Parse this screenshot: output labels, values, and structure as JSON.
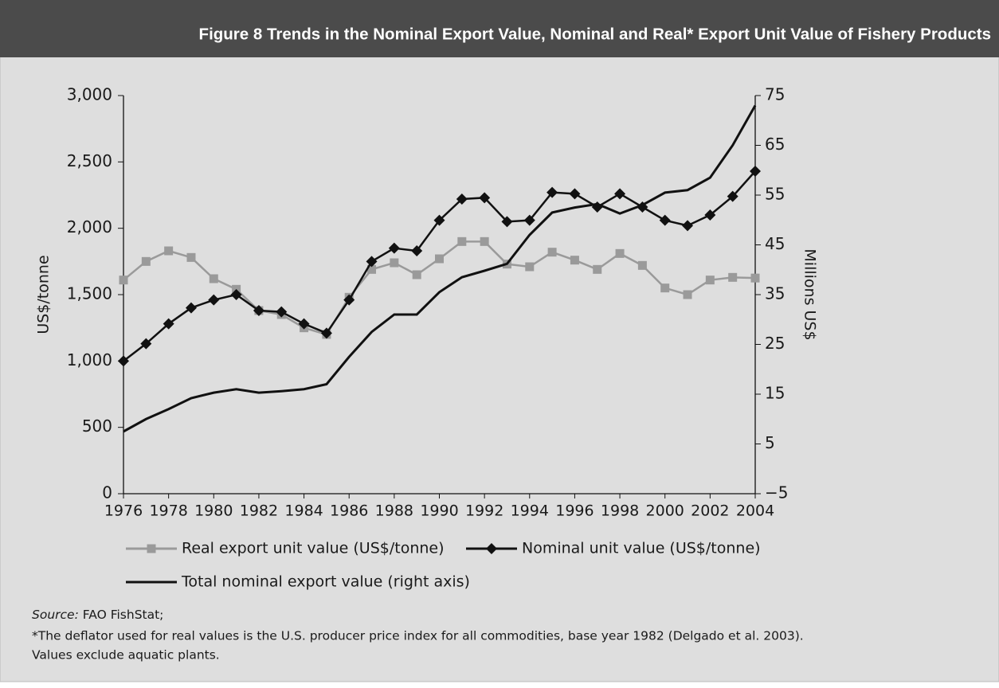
{
  "chart_data": {
    "type": "line",
    "title": "Figure 8  Trends in the Nominal Export Value, Nominal and Real* Export Unit Value of Fishery Products",
    "ylabel": "US$/tonne",
    "y2label": "Millions US$",
    "xlim": [
      1976,
      2004
    ],
    "xticks": [
      1976,
      1978,
      1980,
      1982,
      1984,
      1986,
      1988,
      1990,
      1992,
      1994,
      1996,
      1998,
      2000,
      2002,
      2004
    ],
    "ylim": [
      0,
      3000
    ],
    "yticks": [
      0,
      500,
      {
        "value": 1000,
        "label": "1,000"
      },
      {
        "value": 1500,
        "label": "1,500"
      },
      {
        "value": 2000,
        "label": "2,000"
      },
      {
        "value": 2500,
        "label": "2,500"
      },
      {
        "value": 3000,
        "label": "3,000"
      }
    ],
    "y2lim": [
      -5,
      75
    ],
    "y2ticks": [
      {
        "value": -5,
        "label": "−5"
      },
      5,
      15,
      25,
      35,
      45,
      55,
      65,
      75
    ],
    "x": [
      1976,
      1977,
      1978,
      1979,
      1980,
      1981,
      1982,
      1983,
      1984,
      1985,
      1986,
      1987,
      1988,
      1989,
      1990,
      1991,
      1992,
      1993,
      1994,
      1995,
      1996,
      1997,
      1998,
      1999,
      2000,
      2001,
      2002,
      2003,
      2004
    ],
    "series": [
      {
        "name": "Real export unit value (US$/tonne)",
        "color": "#9a9a9a",
        "marker": "square",
        "values": [
          1610,
          1750,
          1830,
          1780,
          1620,
          1540,
          1380,
          1350,
          1250,
          1200,
          1480,
          1690,
          1740,
          1650,
          1770,
          1900,
          1900,
          1730,
          1710,
          1820,
          1760,
          1690,
          1810,
          1720,
          1550,
          1500,
          1610,
          1630,
          1625
        ]
      },
      {
        "name": "Nominal unit value (US$/tonne)",
        "color": "#111111",
        "marker": "diamond",
        "values": [
          1000,
          1130,
          1280,
          1400,
          1460,
          1500,
          1380,
          1370,
          1280,
          1210,
          1460,
          1750,
          1850,
          1830,
          2060,
          2220,
          2230,
          2050,
          2060,
          2270,
          2260,
          2160,
          2260,
          2160,
          2060,
          2020,
          2100,
          2240,
          2430
        ]
      },
      {
        "name": "Total nominal export value (right axis)",
        "color": "#111111",
        "axis": "y2",
        "values": [
          7.5,
          10,
          12,
          14.2,
          15.3,
          16,
          15.3,
          15.6,
          16,
          17,
          22.5,
          27.5,
          31,
          31,
          35.5,
          38.5,
          39.8,
          41.2,
          47,
          51.5,
          52.5,
          53.2,
          51.3,
          53,
          55.5,
          56,
          58.5,
          65,
          73
        ]
      }
    ]
  },
  "source": {
    "label": "Source:",
    "text": "FAO FishStat;"
  },
  "notes": [
    "*The deflator used for real values is the U.S. producer price index for all commodities, base year 1982 (Delgado et al. 2003).",
    "Values exclude aquatic plants."
  ]
}
